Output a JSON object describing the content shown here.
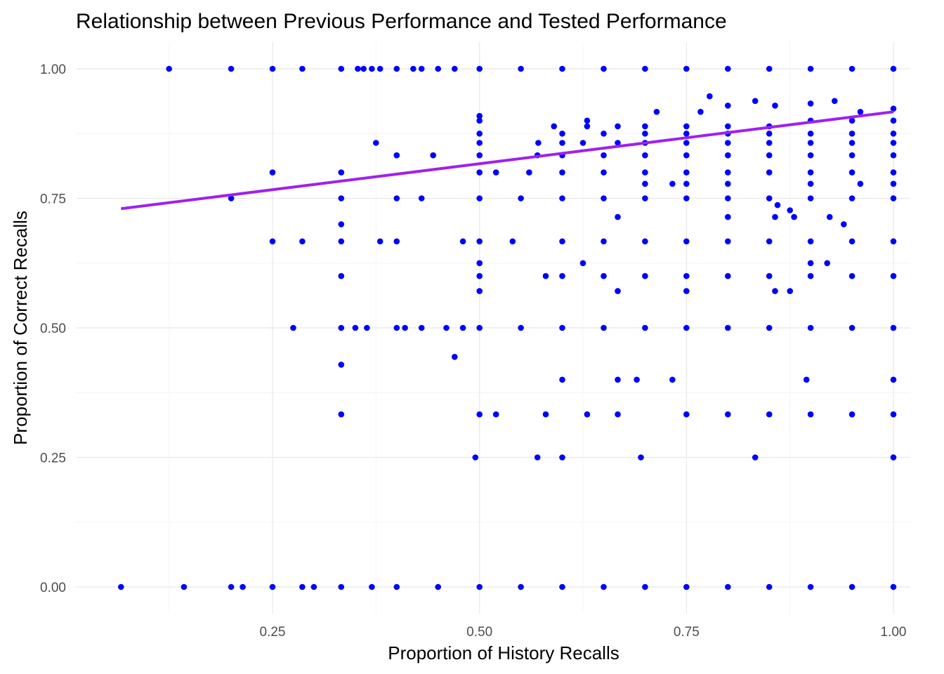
{
  "chart_data": {
    "type": "scatter",
    "title": "Relationship between Previous Performance and Tested Performance",
    "xlabel": "Proportion of History Recalls",
    "ylabel": "Proportion of Correct Recalls",
    "xlim": [
      0.05,
      1.0
    ],
    "ylim": [
      0.0,
      1.0
    ],
    "xticks": [
      "0.25",
      "0.50",
      "0.75",
      "1.00"
    ],
    "yticks": [
      "0.00",
      "0.25",
      "0.50",
      "0.75",
      "1.00"
    ],
    "grid": true,
    "legend": "none",
    "colors": {
      "points": "#0000ff",
      "trend": "#a020f0"
    },
    "trend_line": {
      "x": [
        0.067,
        1.0
      ],
      "y": [
        0.73,
        0.917
      ]
    },
    "points": [
      [
        0.125,
        1.0
      ],
      [
        0.2,
        1.0
      ],
      [
        0.25,
        1.0
      ],
      [
        0.286,
        1.0
      ],
      [
        0.333,
        1.0
      ],
      [
        0.353,
        1.0
      ],
      [
        0.36,
        1.0
      ],
      [
        0.37,
        1.0
      ],
      [
        0.38,
        1.0
      ],
      [
        0.4,
        1.0
      ],
      [
        0.42,
        1.0
      ],
      [
        0.43,
        1.0
      ],
      [
        0.45,
        1.0
      ],
      [
        0.47,
        1.0
      ],
      [
        0.5,
        1.0
      ],
      [
        0.55,
        1.0
      ],
      [
        0.6,
        1.0
      ],
      [
        0.65,
        1.0
      ],
      [
        0.7,
        1.0
      ],
      [
        0.75,
        1.0
      ],
      [
        0.8,
        1.0
      ],
      [
        0.85,
        1.0
      ],
      [
        0.9,
        1.0
      ],
      [
        0.95,
        1.0
      ],
      [
        1.0,
        1.0
      ],
      [
        0.067,
        0.0
      ],
      [
        0.143,
        0.0
      ],
      [
        0.2,
        0.0
      ],
      [
        0.214,
        0.0
      ],
      [
        0.25,
        0.0
      ],
      [
        0.286,
        0.0
      ],
      [
        0.3,
        0.0
      ],
      [
        0.333,
        0.0
      ],
      [
        0.37,
        0.0
      ],
      [
        0.4,
        0.0
      ],
      [
        0.45,
        0.0
      ],
      [
        0.5,
        0.0
      ],
      [
        0.55,
        0.0
      ],
      [
        0.6,
        0.0
      ],
      [
        0.65,
        0.0
      ],
      [
        0.7,
        0.0
      ],
      [
        0.75,
        0.0
      ],
      [
        0.8,
        0.0
      ],
      [
        0.85,
        0.0
      ],
      [
        0.9,
        0.0
      ],
      [
        0.95,
        0.0
      ],
      [
        1.0,
        0.0
      ],
      [
        0.275,
        0.5
      ],
      [
        0.333,
        0.5
      ],
      [
        0.35,
        0.5
      ],
      [
        0.364,
        0.5
      ],
      [
        0.4,
        0.5
      ],
      [
        0.41,
        0.5
      ],
      [
        0.43,
        0.5
      ],
      [
        0.46,
        0.5
      ],
      [
        0.48,
        0.5
      ],
      [
        0.5,
        0.5
      ],
      [
        0.55,
        0.5
      ],
      [
        0.6,
        0.5
      ],
      [
        0.65,
        0.5
      ],
      [
        0.7,
        0.5
      ],
      [
        0.75,
        0.5
      ],
      [
        0.8,
        0.5
      ],
      [
        0.85,
        0.5
      ],
      [
        0.9,
        0.5
      ],
      [
        0.95,
        0.5
      ],
      [
        1.0,
        0.5
      ],
      [
        0.25,
        0.667
      ],
      [
        0.286,
        0.667
      ],
      [
        0.333,
        0.667
      ],
      [
        0.38,
        0.667
      ],
      [
        0.4,
        0.667
      ],
      [
        0.48,
        0.667
      ],
      [
        0.5,
        0.667
      ],
      [
        0.54,
        0.667
      ],
      [
        0.6,
        0.667
      ],
      [
        0.65,
        0.667
      ],
      [
        0.7,
        0.667
      ],
      [
        0.75,
        0.667
      ],
      [
        0.8,
        0.667
      ],
      [
        0.85,
        0.667
      ],
      [
        0.9,
        0.667
      ],
      [
        0.95,
        0.667
      ],
      [
        1.0,
        0.667
      ],
      [
        0.2,
        0.75
      ],
      [
        0.333,
        0.75
      ],
      [
        0.4,
        0.75
      ],
      [
        0.43,
        0.75
      ],
      [
        0.5,
        0.75
      ],
      [
        0.55,
        0.75
      ],
      [
        0.6,
        0.75
      ],
      [
        0.65,
        0.75
      ],
      [
        0.7,
        0.75
      ],
      [
        0.75,
        0.75
      ],
      [
        0.8,
        0.75
      ],
      [
        0.85,
        0.75
      ],
      [
        0.9,
        0.75
      ],
      [
        0.95,
        0.75
      ],
      [
        1.0,
        0.75
      ],
      [
        0.25,
        0.8
      ],
      [
        0.333,
        0.8
      ],
      [
        0.5,
        0.8
      ],
      [
        0.52,
        0.8
      ],
      [
        0.56,
        0.8
      ],
      [
        0.6,
        0.8
      ],
      [
        0.65,
        0.8
      ],
      [
        0.7,
        0.8
      ],
      [
        0.75,
        0.8
      ],
      [
        0.8,
        0.8
      ],
      [
        0.85,
        0.8
      ],
      [
        0.9,
        0.8
      ],
      [
        0.95,
        0.8
      ],
      [
        1.0,
        0.8
      ],
      [
        0.4,
        0.833
      ],
      [
        0.444,
        0.833
      ],
      [
        0.5,
        0.833
      ],
      [
        0.57,
        0.833
      ],
      [
        0.6,
        0.833
      ],
      [
        0.65,
        0.833
      ],
      [
        0.7,
        0.833
      ],
      [
        0.75,
        0.833
      ],
      [
        0.8,
        0.833
      ],
      [
        0.85,
        0.833
      ],
      [
        0.9,
        0.833
      ],
      [
        0.95,
        0.833
      ],
      [
        1.0,
        0.833
      ],
      [
        0.333,
        0.6
      ],
      [
        0.5,
        0.6
      ],
      [
        0.58,
        0.6
      ],
      [
        0.6,
        0.6
      ],
      [
        0.65,
        0.6
      ],
      [
        0.7,
        0.6
      ],
      [
        0.75,
        0.6
      ],
      [
        0.8,
        0.6
      ],
      [
        0.85,
        0.6
      ],
      [
        0.9,
        0.6
      ],
      [
        0.95,
        0.6
      ],
      [
        1.0,
        0.6
      ],
      [
        0.333,
        0.333
      ],
      [
        0.5,
        0.333
      ],
      [
        0.52,
        0.333
      ],
      [
        0.58,
        0.333
      ],
      [
        0.63,
        0.333
      ],
      [
        0.667,
        0.333
      ],
      [
        0.75,
        0.333
      ],
      [
        0.8,
        0.333
      ],
      [
        0.85,
        0.333
      ],
      [
        0.9,
        0.333
      ],
      [
        0.95,
        0.333
      ],
      [
        1.0,
        0.333
      ],
      [
        0.495,
        0.25
      ],
      [
        0.57,
        0.25
      ],
      [
        0.6,
        0.25
      ],
      [
        0.695,
        0.25
      ],
      [
        0.833,
        0.25
      ],
      [
        1.0,
        0.25
      ],
      [
        0.6,
        0.4
      ],
      [
        0.667,
        0.4
      ],
      [
        0.69,
        0.4
      ],
      [
        0.733,
        0.4
      ],
      [
        0.895,
        0.4
      ],
      [
        1.0,
        0.4
      ],
      [
        0.333,
        0.429
      ],
      [
        0.47,
        0.444
      ],
      [
        0.333,
        0.7
      ],
      [
        0.5,
        0.571
      ],
      [
        0.667,
        0.571
      ],
      [
        0.75,
        0.571
      ],
      [
        0.857,
        0.571
      ],
      [
        0.875,
        0.571
      ],
      [
        0.625,
        0.625
      ],
      [
        0.9,
        0.625
      ],
      [
        0.92,
        0.625
      ],
      [
        0.5,
        0.625
      ],
      [
        0.667,
        0.714
      ],
      [
        0.8,
        0.714
      ],
      [
        0.857,
        0.714
      ],
      [
        0.923,
        0.714
      ],
      [
        0.94,
        0.7
      ],
      [
        0.375,
        0.857
      ],
      [
        0.5,
        0.857
      ],
      [
        0.571,
        0.857
      ],
      [
        0.6,
        0.857
      ],
      [
        0.625,
        0.857
      ],
      [
        0.667,
        0.857
      ],
      [
        0.7,
        0.857
      ],
      [
        0.75,
        0.857
      ],
      [
        0.8,
        0.857
      ],
      [
        0.85,
        0.857
      ],
      [
        0.9,
        0.857
      ],
      [
        0.95,
        0.857
      ],
      [
        1.0,
        0.857
      ],
      [
        0.5,
        0.875
      ],
      [
        0.6,
        0.875
      ],
      [
        0.65,
        0.875
      ],
      [
        0.7,
        0.875
      ],
      [
        0.75,
        0.875
      ],
      [
        0.8,
        0.875
      ],
      [
        0.85,
        0.875
      ],
      [
        0.9,
        0.875
      ],
      [
        0.95,
        0.875
      ],
      [
        1.0,
        0.875
      ],
      [
        0.5,
        0.9
      ],
      [
        0.59,
        0.889
      ],
      [
        0.63,
        0.889
      ],
      [
        0.667,
        0.889
      ],
      [
        0.7,
        0.889
      ],
      [
        0.75,
        0.889
      ],
      [
        0.8,
        0.889
      ],
      [
        0.85,
        0.889
      ],
      [
        0.9,
        0.9
      ],
      [
        0.95,
        0.9
      ],
      [
        1.0,
        0.9
      ],
      [
        0.5,
        0.909
      ],
      [
        0.63,
        0.9
      ],
      [
        0.714,
        0.917
      ],
      [
        0.767,
        0.917
      ],
      [
        0.778,
        0.947
      ],
      [
        0.8,
        0.929
      ],
      [
        0.833,
        0.938
      ],
      [
        0.857,
        0.929
      ],
      [
        0.9,
        0.933
      ],
      [
        0.929,
        0.938
      ],
      [
        0.96,
        0.917
      ],
      [
        1.0,
        0.923
      ],
      [
        0.7,
        0.778
      ],
      [
        0.733,
        0.778
      ],
      [
        0.75,
        0.778
      ],
      [
        0.8,
        0.778
      ],
      [
        0.86,
        0.737
      ],
      [
        0.9,
        0.778
      ],
      [
        0.96,
        0.778
      ],
      [
        1.0,
        0.778
      ],
      [
        0.875,
        0.727
      ],
      [
        0.88,
        0.714
      ]
    ]
  }
}
